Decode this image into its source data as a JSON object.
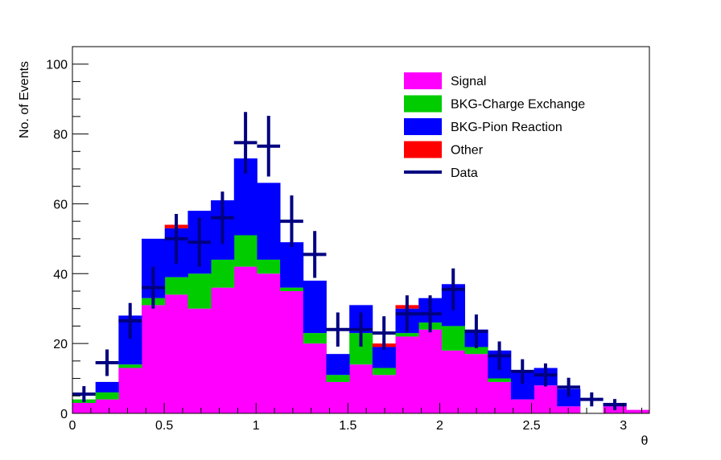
{
  "chart_data": {
    "type": "bar",
    "stacked": true,
    "title": "",
    "xlabel": "θ",
    "ylabel": "No. of Events",
    "xlim": [
      0,
      3.1416
    ],
    "ylim": [
      0,
      105
    ],
    "x_ticks": [
      0,
      0.5,
      1,
      1.5,
      2,
      2.5,
      3
    ],
    "x_tick_labels": [
      "0",
      "0.5",
      "1",
      "1.5",
      "2",
      "2.5",
      "3"
    ],
    "y_ticks": [
      0,
      20,
      40,
      60,
      80,
      100
    ],
    "y_tick_labels": [
      "0",
      "20",
      "40",
      "60",
      "80",
      "100"
    ],
    "grid": false,
    "legend_position": "top-right",
    "bin_width": 0.1257,
    "bin_centers": [
      0.0628,
      0.1885,
      0.3142,
      0.4398,
      0.5655,
      0.6912,
      0.8168,
      0.9425,
      1.0681,
      1.1938,
      1.3195,
      1.4451,
      1.5708,
      1.6965,
      1.8221,
      1.9478,
      2.0735,
      2.1991,
      2.3248,
      2.4504,
      2.5761,
      2.7018,
      2.8274,
      2.9531,
      3.0788
    ],
    "series": [
      {
        "name": "Signal",
        "color": "#ff00ff",
        "values": [
          3,
          4,
          13,
          31,
          34,
          30,
          36,
          42,
          40,
          35,
          20,
          9,
          14,
          11,
          22,
          24,
          18,
          17,
          9,
          4,
          8,
          2,
          0,
          2,
          1
        ]
      },
      {
        "name": "BKG-Charge Exchange",
        "color": "#00cc00",
        "values": [
          1,
          2,
          1,
          2,
          5,
          10,
          8,
          9,
          4,
          1,
          3,
          2,
          9,
          2,
          1,
          2,
          7,
          2,
          1,
          0,
          0,
          0,
          0,
          0,
          0
        ]
      },
      {
        "name": "BKG-Pion Reaction",
        "color": "#0000ff",
        "values": [
          0,
          3,
          14,
          17,
          14,
          18,
          17,
          22,
          22,
          13,
          15,
          6,
          8,
          6,
          7,
          7,
          12,
          5,
          8,
          8,
          5,
          5,
          0,
          1,
          0
        ]
      },
      {
        "name": "Other",
        "color": "#ff0000",
        "values": [
          0,
          0,
          0,
          0,
          1,
          0,
          0,
          0,
          0,
          0,
          0,
          0,
          0,
          1,
          1,
          0,
          0,
          0,
          0,
          0,
          0,
          0,
          0,
          0,
          0
        ]
      }
    ],
    "data_points": {
      "name": "Data",
      "color": "#000080",
      "values": [
        5.5,
        14.5,
        26.5,
        36,
        50,
        49,
        56,
        77.5,
        76.5,
        55,
        45.5,
        24,
        24,
        23,
        28.5,
        28.5,
        35.5,
        23.5,
        16.5,
        12,
        11,
        7.5,
        4,
        2.5,
        0
      ],
      "errors": [
        2.3,
        3.8,
        5.1,
        6.0,
        7.1,
        7.0,
        7.5,
        8.8,
        8.7,
        7.4,
        6.7,
        4.9,
        4.9,
        4.8,
        5.3,
        5.3,
        6.0,
        4.8,
        4.1,
        3.5,
        3.3,
        2.7,
        2.0,
        1.6,
        0
      ]
    },
    "legend": [
      {
        "label": "Signal",
        "kind": "box",
        "color": "#ff00ff"
      },
      {
        "label": "BKG-Charge Exchange",
        "kind": "box",
        "color": "#00cc00"
      },
      {
        "label": "BKG-Pion Reaction",
        "kind": "box",
        "color": "#0000ff"
      },
      {
        "label": "Other",
        "kind": "box",
        "color": "#ff0000"
      },
      {
        "label": "Data",
        "kind": "line",
        "color": "#000080"
      }
    ]
  }
}
